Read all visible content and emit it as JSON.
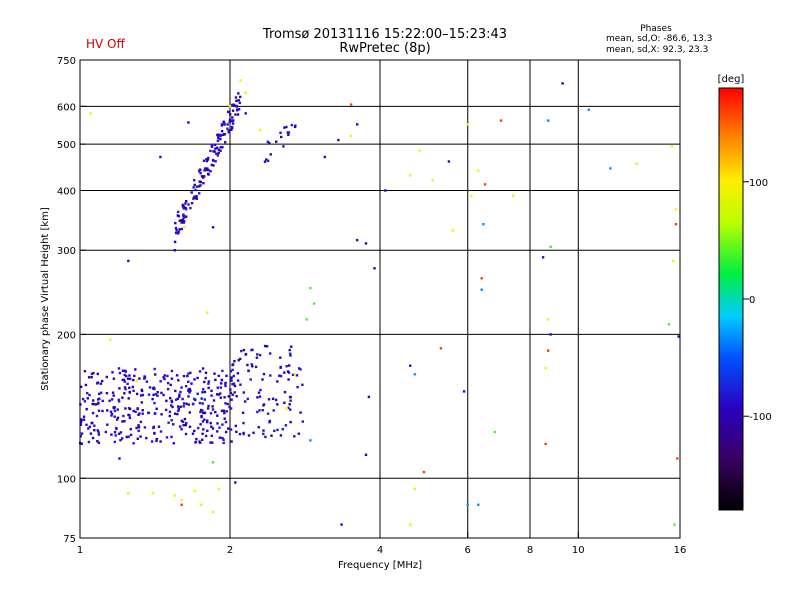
{
  "status": {
    "hv_label": "HV Off",
    "hv_color": "#cc0000"
  },
  "header": {
    "title": "Tromsø 20131116 15:22:00–15:23:43",
    "subtitle": "RwPretec (8p)"
  },
  "stats": {
    "heading": "Phases",
    "o_line": "mean, sd,O: -86.6, 13.3",
    "x_line": "mean, sd,X: 92.3, 23.3"
  },
  "colorbar": {
    "label": "[deg]",
    "ticks": [
      "100",
      "0",
      "-100"
    ],
    "tick_values": [
      100,
      0,
      -100
    ],
    "range": [
      -180,
      180
    ]
  },
  "chart_data": {
    "type": "scatter",
    "xlabel": "Frequency [MHz]",
    "ylabel": "Stationary phase Virtual Height [km]",
    "xscale": "log",
    "yscale": "log",
    "xlim": [
      1,
      16
    ],
    "ylim": [
      75,
      750
    ],
    "xticks": [
      1,
      2,
      4,
      6,
      8,
      10,
      16
    ],
    "xtick_labels": [
      "1",
      "2",
      "4",
      "6",
      "8",
      "10",
      "16"
    ],
    "xgrid": [
      2,
      4,
      6,
      8,
      10
    ],
    "yticks": [
      75,
      100,
      200,
      300,
      400,
      500,
      600,
      750
    ],
    "ytick_labels": [
      "75",
      "100",
      "200",
      "300",
      "400",
      "500",
      "600",
      "750"
    ],
    "ygrid": [
      100,
      200,
      300,
      400,
      500,
      600
    ],
    "grid": true,
    "series": [
      {
        "color_meaning": "phase O-mode (blue, ~-90 deg)",
        "phase": -90,
        "clusters": [
          {
            "fmin": 1.0,
            "fmax": 2.05,
            "hmin": 118,
            "hmax": 170,
            "n": 380
          },
          {
            "fmin": 2.0,
            "fmax": 2.8,
            "hmin": 122,
            "hmax": 190,
            "n": 110
          },
          {
            "fmin": 1.55,
            "fmax": 2.1,
            "hmin": 330,
            "hmax": 620,
            "n": 150
          },
          {
            "fmin": 2.35,
            "fmax": 2.75,
            "hmin": 480,
            "hmax": 540,
            "n": 18
          }
        ],
        "points": [
          [
            1.25,
            285
          ],
          [
            1.65,
            555
          ],
          [
            1.45,
            470
          ],
          [
            3.3,
            510
          ],
          [
            3.6,
            315
          ],
          [
            3.75,
            310
          ],
          [
            3.6,
            550
          ],
          [
            3.1,
            470
          ],
          [
            3.9,
            275
          ],
          [
            4.1,
            400
          ],
          [
            3.8,
            148
          ],
          [
            3.75,
            112
          ],
          [
            3.35,
            80
          ],
          [
            5.5,
            460
          ],
          [
            5.9,
            152
          ],
          [
            8.5,
            290
          ],
          [
            8.8,
            200
          ],
          [
            9.3,
            670
          ],
          [
            1.2,
            110
          ],
          [
            2.05,
            98
          ],
          [
            1.85,
            335
          ],
          [
            2.15,
            580
          ],
          [
            1.55,
            300
          ],
          [
            4.6,
            172
          ],
          [
            15.9,
            198
          ]
        ]
      },
      {
        "color_meaning": "phase X-mode (yellow/orange, ~+100 deg)",
        "phase": 100,
        "points": [
          [
            1.4,
            93
          ],
          [
            1.55,
            92
          ],
          [
            1.7,
            94
          ],
          [
            1.9,
            95
          ],
          [
            1.6,
            90
          ],
          [
            1.85,
            85
          ],
          [
            1.75,
            88
          ],
          [
            1.25,
            93
          ],
          [
            1.62,
            335
          ],
          [
            1.8,
            222
          ],
          [
            2.1,
            680
          ],
          [
            2.15,
            640
          ],
          [
            2.3,
            535
          ],
          [
            3.5,
            520
          ],
          [
            4.6,
            430
          ],
          [
            4.7,
            95
          ],
          [
            4.8,
            485
          ],
          [
            5.1,
            420
          ],
          [
            6.0,
            550
          ],
          [
            6.1,
            390
          ],
          [
            6.3,
            440
          ],
          [
            7.4,
            390
          ],
          [
            8.6,
            170
          ],
          [
            8.7,
            215
          ],
          [
            8.8,
            305
          ],
          [
            13.1,
            455
          ],
          [
            15.7,
            365
          ],
          [
            15.5,
            285
          ],
          [
            15.4,
            495
          ],
          [
            5.6,
            330
          ],
          [
            4.6,
            80
          ],
          [
            2.0,
            600
          ],
          [
            2.7,
            165
          ],
          [
            2.6,
            140
          ],
          [
            1.05,
            580
          ],
          [
            1.3,
            160
          ],
          [
            1.15,
            195
          ]
        ]
      },
      {
        "color_meaning": "phase near +40 deg (green)",
        "phase": 40,
        "points": [
          [
            1.85,
            108
          ],
          [
            2.85,
            215
          ],
          [
            2.9,
            250
          ],
          [
            2.95,
            232
          ],
          [
            6.8,
            125
          ],
          [
            8.8,
            305
          ],
          [
            15.6,
            80
          ],
          [
            15.2,
            210
          ]
        ]
      },
      {
        "color_meaning": "phase near -30 deg (cyan)",
        "phase": -30,
        "points": [
          [
            2.9,
            120
          ],
          [
            4.7,
            165
          ],
          [
            6.3,
            88
          ],
          [
            6.4,
            248
          ],
          [
            6.45,
            340
          ],
          [
            8.7,
            560
          ],
          [
            10.5,
            590
          ],
          [
            11.6,
            445
          ],
          [
            6.0,
            88
          ]
        ]
      },
      {
        "color_meaning": "phase near +160 deg (red)",
        "phase": 160,
        "points": [
          [
            3.5,
            605
          ],
          [
            4.9,
            103
          ],
          [
            5.3,
            187
          ],
          [
            6.4,
            262
          ],
          [
            6.5,
            412
          ],
          [
            7.0,
            560
          ],
          [
            8.6,
            118
          ],
          [
            8.7,
            185
          ],
          [
            15.7,
            340
          ],
          [
            15.8,
            110
          ],
          [
            1.6,
            88
          ]
        ]
      }
    ]
  }
}
